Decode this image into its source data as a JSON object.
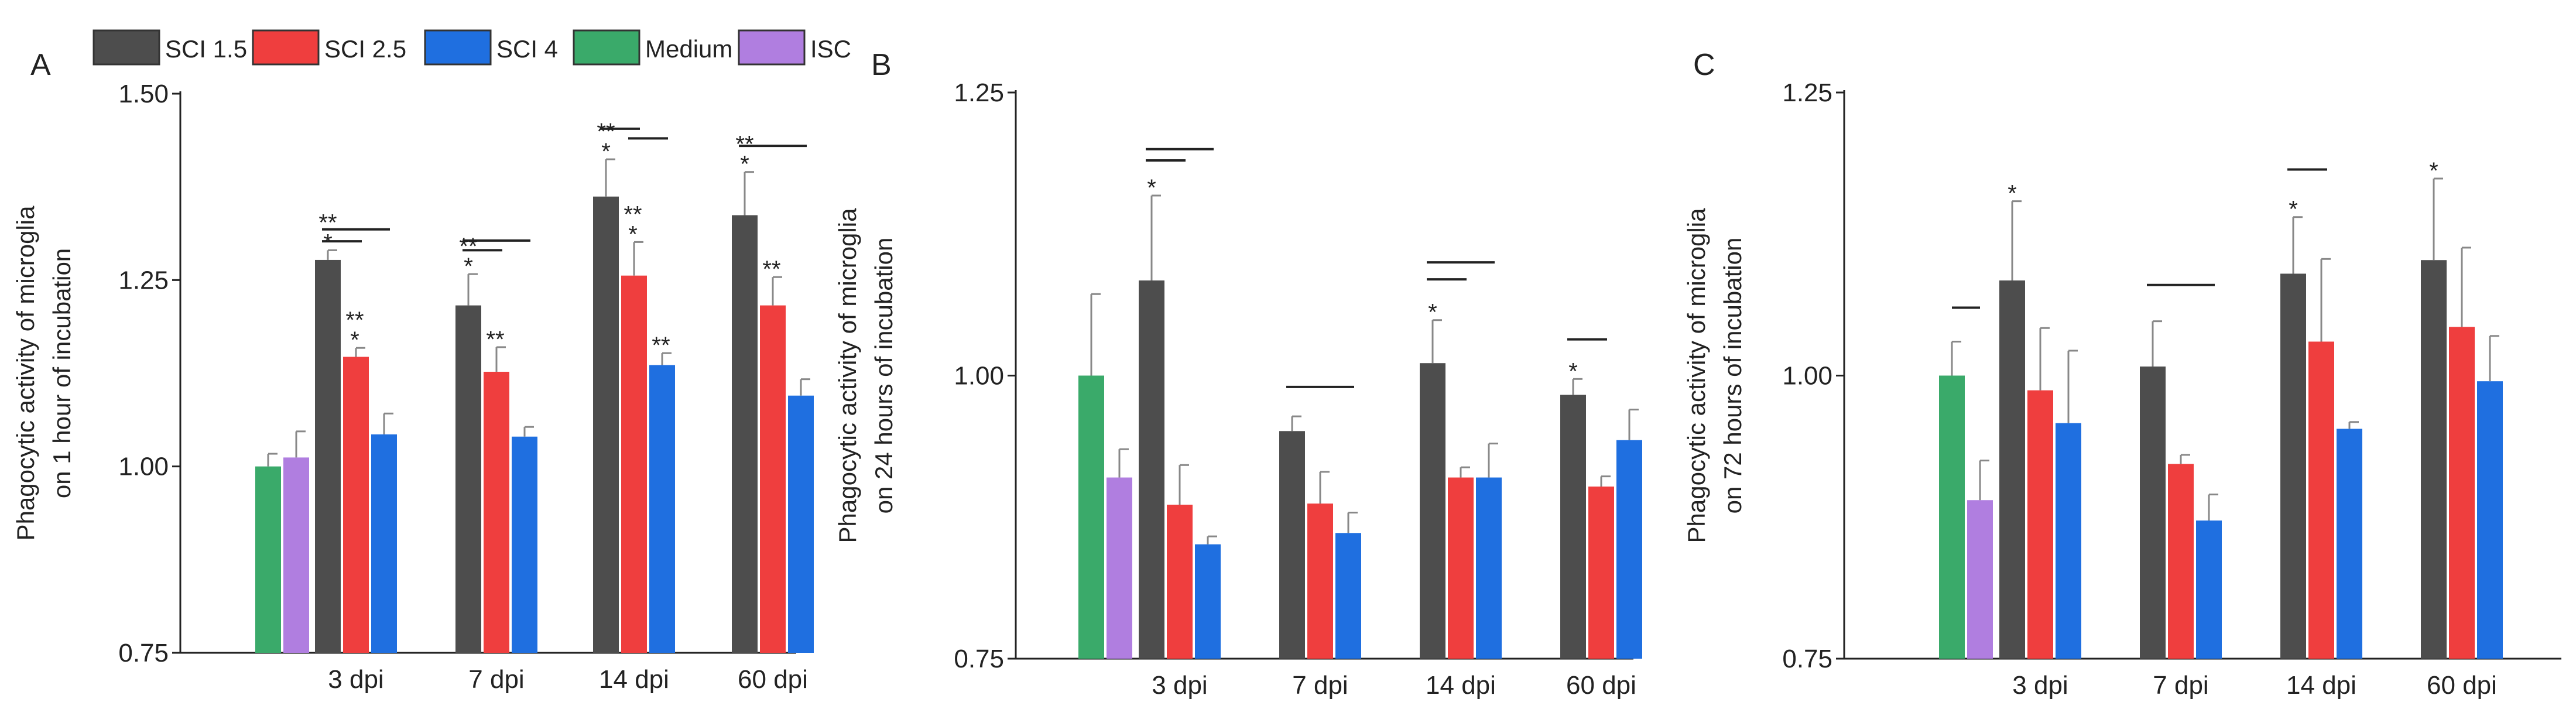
{
  "legend": [
    {
      "name": "SCI 1.5",
      "color": "#4d4d4d"
    },
    {
      "name": "SCI 2.5",
      "color": "#ef3e3e"
    },
    {
      "name": "SCI 4",
      "color": "#1f6fe0"
    },
    {
      "name": "Medium",
      "color": "#3aaa6a"
    },
    {
      "name": "ISC",
      "color": "#b07ee0"
    }
  ],
  "chart_data": [
    {
      "type": "bar",
      "panel": "A",
      "ylabel_line1": "Phagocytic activity of microglia",
      "ylabel_line2": "on 1 hour of incubation",
      "ylim": [
        0.75,
        1.5
      ],
      "yticks": [
        "0.75",
        "1.00",
        "1.25",
        "1.50"
      ],
      "yticks_values": [
        0.75,
        1.0,
        1.25,
        1.5
      ],
      "controls": [
        {
          "name": "Medium",
          "value": 1.0,
          "err": 0.017
        },
        {
          "name": "ISC",
          "value": 1.012,
          "err": 0.035
        }
      ],
      "categories": [
        "3 dpi",
        "7 dpi",
        "14 dpi",
        "60 dpi"
      ],
      "series": [
        {
          "name": "SCI 1.5",
          "values": [
            1.277,
            1.216,
            1.362,
            1.337
          ],
          "errors": [
            0.013,
            0.042,
            0.05,
            0.058
          ]
        },
        {
          "name": "SCI 2.5",
          "values": [
            1.147,
            1.127,
            1.256,
            1.216
          ],
          "errors": [
            0.012,
            0.033,
            0.045,
            0.038
          ]
        },
        {
          "name": "SCI 4",
          "values": [
            1.043,
            1.04,
            1.136,
            1.095
          ],
          "errors": [
            0.028,
            0.013,
            0.016,
            0.022
          ]
        }
      ],
      "annotations": [
        {
          "category": 0,
          "series": 0,
          "text": [
            "**",
            "*"
          ]
        },
        {
          "category": 0,
          "series": 1,
          "text": [
            "**",
            "*"
          ]
        },
        {
          "category": 1,
          "series": 0,
          "text": [
            "**",
            "*"
          ]
        },
        {
          "category": 1,
          "series": 1,
          "text": [
            "**"
          ]
        },
        {
          "category": 2,
          "series": 0,
          "text": [
            "**",
            "*"
          ]
        },
        {
          "category": 2,
          "series": 1,
          "text": [
            "**",
            "*"
          ]
        },
        {
          "category": 2,
          "series": 2,
          "text": [
            "**"
          ]
        },
        {
          "category": 3,
          "series": 0,
          "text": [
            "**",
            "*"
          ]
        },
        {
          "category": 3,
          "series": 1,
          "text": [
            "**"
          ]
        }
      ],
      "comparison_lines": [
        {
          "category": 0,
          "from": 0,
          "to": 1,
          "y": 1.302
        },
        {
          "category": 0,
          "from": 0,
          "to": 2,
          "y": 1.318
        },
        {
          "category": 1,
          "from": 0,
          "to": 1,
          "y": 1.29
        },
        {
          "category": 1,
          "from": 0,
          "to": 2,
          "y": 1.303
        },
        {
          "category": 2,
          "from": 0,
          "to": 1,
          "y": 1.453
        },
        {
          "category": 2,
          "from": 1,
          "to": 2,
          "y": 1.44
        },
        {
          "category": 3,
          "from": 0,
          "to": 2,
          "y": 1.43
        }
      ]
    },
    {
      "type": "bar",
      "panel": "B",
      "ylabel_line1": "Phagocytic activity of microglia",
      "ylabel_line2": "on 24 hours of incubation",
      "ylim": [
        0.75,
        1.25
      ],
      "yticks": [
        "0.75",
        "1.00",
        "1.25"
      ],
      "yticks_values": [
        0.75,
        1.0,
        1.25
      ],
      "controls": [
        {
          "name": "Medium",
          "value": 1.0,
          "err": 0.072
        },
        {
          "name": "ISC",
          "value": 0.91,
          "err": 0.025
        }
      ],
      "categories": [
        "3 dpi",
        "7 dpi",
        "14 dpi",
        "60 dpi"
      ],
      "series": [
        {
          "name": "SCI 1.5",
          "values": [
            1.084,
            0.951,
            1.011,
            0.983
          ],
          "errors": [
            0.075,
            0.013,
            0.038,
            0.014
          ]
        },
        {
          "name": "SCI 2.5",
          "values": [
            0.886,
            0.887,
            0.91,
            0.902
          ],
          "errors": [
            0.035,
            0.028,
            0.009,
            0.009
          ]
        },
        {
          "name": "SCI 4",
          "values": [
            0.851,
            0.861,
            0.91,
            0.943
          ],
          "errors": [
            0.007,
            0.018,
            0.03,
            0.027
          ]
        }
      ],
      "annotations": [
        {
          "category": 0,
          "series": 0,
          "text": [
            "*"
          ]
        },
        {
          "category": 2,
          "series": 0,
          "text": [
            "*"
          ]
        },
        {
          "category": 3,
          "series": 0,
          "text": [
            "*"
          ]
        }
      ],
      "comparison_lines": [
        {
          "category": 0,
          "from": 0,
          "to": 1,
          "y": 1.19
        },
        {
          "category": 0,
          "from": 0,
          "to": 2,
          "y": 1.2
        },
        {
          "category": 1,
          "from": 0,
          "to": 2,
          "y": 0.99
        },
        {
          "category": 2,
          "from": 0,
          "to": 1,
          "y": 1.085
        },
        {
          "category": 2,
          "from": 0,
          "to": 2,
          "y": 1.1
        },
        {
          "category": 3,
          "from": 0,
          "to": 1,
          "y": 1.032
        }
      ]
    },
    {
      "type": "bar",
      "panel": "C",
      "ylabel_line1": "Phagocytic activity of microglia",
      "ylabel_line2": "on 72 hours of incubation",
      "ylim": [
        0.75,
        1.25
      ],
      "yticks": [
        "0.75",
        "1.00",
        "1.25"
      ],
      "yticks_values": [
        0.75,
        1.0,
        1.25
      ],
      "controls": [
        {
          "name": "Medium",
          "value": 1.0,
          "err": 0.03
        },
        {
          "name": "ISC",
          "value": 0.89,
          "err": 0.035
        }
      ],
      "categories": [
        "3 dpi",
        "7 dpi",
        "14 dpi",
        "60 dpi"
      ],
      "series": [
        {
          "name": "SCI 1.5",
          "values": [
            1.084,
            1.008,
            1.09,
            1.102
          ],
          "errors": [
            0.07,
            0.04,
            0.05,
            0.072
          ]
        },
        {
          "name": "SCI 2.5",
          "values": [
            0.987,
            0.922,
            1.03,
            1.043
          ],
          "errors": [
            0.055,
            0.008,
            0.073,
            0.07
          ]
        },
        {
          "name": "SCI 4",
          "values": [
            0.958,
            0.872,
            0.953,
            0.995
          ],
          "errors": [
            0.064,
            0.023,
            0.006,
            0.04
          ]
        }
      ],
      "annotations": [
        {
          "category": 0,
          "series": 0,
          "text": [
            "*"
          ]
        },
        {
          "category": 2,
          "series": 0,
          "text": [
            "*"
          ]
        },
        {
          "category": 3,
          "series": 0,
          "text": [
            "*"
          ]
        }
      ],
      "comparison_lines": [
        {
          "category": -1,
          "from": 0,
          "to": 0,
          "y": 1.06
        },
        {
          "category": 1,
          "from": 0,
          "to": 2,
          "y": 1.08
        },
        {
          "category": 2,
          "from": 0,
          "to": 1,
          "y": 1.182
        }
      ]
    }
  ]
}
